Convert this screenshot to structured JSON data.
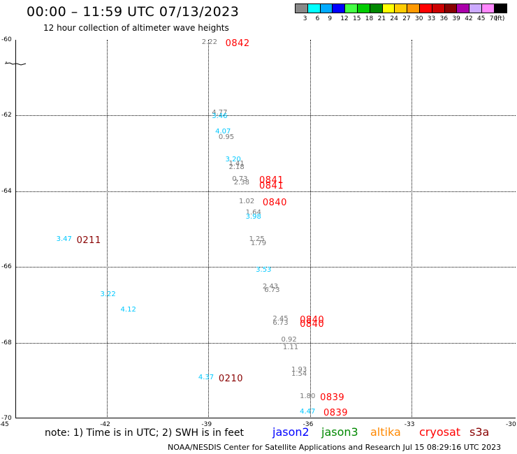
{
  "header": {
    "title": "00:00 – 11:59 UTC 07/13/2023",
    "subtitle": "12 hour collection of altimeter wave heights"
  },
  "colors": {
    "jason2": "#0000ff",
    "jason3": "#008800",
    "altika": "#ff8800",
    "cryosat": "#ff0000",
    "s3a": "#880000",
    "value_cyan": "#00c8ff",
    "value_gray": "#777777",
    "time_red": "#ff0000",
    "time_darkred": "#880000"
  },
  "legend": {
    "unit": "(ft)",
    "swatches": [
      {
        "color": "#888888",
        "label": "3"
      },
      {
        "color": "#00ffff",
        "label": "6"
      },
      {
        "color": "#00aaff",
        "label": "9"
      },
      {
        "color": "#0000ff",
        "label": "12"
      },
      {
        "color": "#44ff44",
        "label": "15"
      },
      {
        "color": "#00cc00",
        "label": "18"
      },
      {
        "color": "#008800",
        "label": "21"
      },
      {
        "color": "#ffff00",
        "label": "24"
      },
      {
        "color": "#ffcc00",
        "label": "27"
      },
      {
        "color": "#ff9900",
        "label": "30"
      },
      {
        "color": "#ff0000",
        "label": "33"
      },
      {
        "color": "#cc0000",
        "label": "36"
      },
      {
        "color": "#880000",
        "label": "39"
      },
      {
        "color": "#aa00aa",
        "label": "42"
      },
      {
        "color": "#ccaaff",
        "label": "45"
      },
      {
        "color": "#ff88ff",
        "label": "70"
      },
      {
        "color": "#000000",
        "label": ""
      }
    ]
  },
  "axes": {
    "y_ticks": [
      "-60",
      "-62",
      "-64",
      "-66",
      "-68",
      "-70"
    ],
    "x_ticks": [
      "-45",
      "-42",
      "-39",
      "-36",
      "-33",
      "-30"
    ]
  },
  "observations": [
    {
      "lon": -39.2,
      "lat": -60.1,
      "value": "2.22",
      "color": "value_gray"
    },
    {
      "lon": -38.5,
      "lat": -60.1,
      "time": "0842",
      "color": "time_red"
    },
    {
      "lon": -38.9,
      "lat": -61.95,
      "value": "4.77",
      "color": "value_gray"
    },
    {
      "lon": -38.9,
      "lat": -62.05,
      "value": "3.46",
      "color": "value_cyan"
    },
    {
      "lon": -38.8,
      "lat": -62.45,
      "value": "4.07",
      "color": "value_cyan"
    },
    {
      "lon": -38.7,
      "lat": -62.6,
      "value": "0.95",
      "color": "value_gray"
    },
    {
      "lon": -38.5,
      "lat": -63.2,
      "value": "3.20",
      "color": "value_cyan"
    },
    {
      "lon": -38.4,
      "lat": -63.3,
      "value": "1.41",
      "color": "value_gray"
    },
    {
      "lon": -38.4,
      "lat": -63.4,
      "value": "2.18",
      "color": "value_gray"
    },
    {
      "lon": -38.3,
      "lat": -63.7,
      "value": "0.73",
      "color": "value_gray"
    },
    {
      "lon": -38.25,
      "lat": -63.8,
      "value": "2.38",
      "color": "value_gray"
    },
    {
      "lon": -37.5,
      "lat": -63.7,
      "time": "0841",
      "color": "time_red"
    },
    {
      "lon": -37.5,
      "lat": -63.85,
      "time": "0841",
      "color": "time_red"
    },
    {
      "lon": -38.1,
      "lat": -64.3,
      "value": "1.02",
      "color": "value_gray"
    },
    {
      "lon": -37.4,
      "lat": -64.3,
      "time": "0840",
      "color": "time_red"
    },
    {
      "lon": -37.9,
      "lat": -64.6,
      "value": "1.64",
      "color": "value_gray"
    },
    {
      "lon": -37.9,
      "lat": -64.7,
      "value": "3.98",
      "color": "value_cyan"
    },
    {
      "lon": -43.5,
      "lat": -65.3,
      "value": "3.47",
      "color": "value_cyan"
    },
    {
      "lon": -42.9,
      "lat": -65.3,
      "time": "0211",
      "color": "time_darkred"
    },
    {
      "lon": -37.8,
      "lat": -65.3,
      "value": "1.25",
      "color": "value_gray"
    },
    {
      "lon": -37.75,
      "lat": -65.4,
      "value": "1.79",
      "color": "value_gray"
    },
    {
      "lon": -37.6,
      "lat": -66.1,
      "value": "3.53",
      "color": "value_cyan"
    },
    {
      "lon": -37.4,
      "lat": -66.55,
      "value": "2.43",
      "color": "value_gray"
    },
    {
      "lon": -37.35,
      "lat": -66.65,
      "value": "6.73",
      "color": "value_gray"
    },
    {
      "lon": -42.2,
      "lat": -66.75,
      "value": "3.22",
      "color": "value_cyan"
    },
    {
      "lon": -41.6,
      "lat": -67.15,
      "value": "4.12",
      "color": "value_cyan"
    },
    {
      "lon": -37.1,
      "lat": -67.4,
      "value": "2.45",
      "color": "value_gray"
    },
    {
      "lon": -37.1,
      "lat": -67.5,
      "value": "6.73",
      "color": "value_gray"
    },
    {
      "lon": -36.3,
      "lat": -67.4,
      "time": "0840",
      "color": "time_red"
    },
    {
      "lon": -36.3,
      "lat": -67.5,
      "time": "0840",
      "color": "time_red"
    },
    {
      "lon": -36.85,
      "lat": -67.95,
      "value": "0.92",
      "color": "value_gray"
    },
    {
      "lon": -36.8,
      "lat": -68.15,
      "value": "1.11",
      "color": "value_gray"
    },
    {
      "lon": -39.3,
      "lat": -68.95,
      "value": "4.37",
      "color": "value_cyan"
    },
    {
      "lon": -38.7,
      "lat": -68.95,
      "time": "0210",
      "color": "time_darkred"
    },
    {
      "lon": -36.55,
      "lat": -68.75,
      "value": "1.93",
      "color": "value_gray"
    },
    {
      "lon": -36.55,
      "lat": -68.85,
      "value": "1.54",
      "color": "value_gray"
    },
    {
      "lon": -36.3,
      "lat": -69.45,
      "value": "1.80",
      "color": "value_gray"
    },
    {
      "lon": -35.7,
      "lat": -69.45,
      "time": "0839",
      "color": "time_red"
    },
    {
      "lon": -36.3,
      "lat": -69.85,
      "value": "4.47",
      "color": "value_cyan"
    },
    {
      "lon": -35.6,
      "lat": -69.85,
      "time": "0839",
      "color": "time_red"
    }
  ],
  "footer": {
    "note": "note: 1) Time is in UTC; 2) SWH is in feet",
    "satellites": [
      {
        "name": "jason2",
        "color": "jason2"
      },
      {
        "name": "jason3",
        "color": "jason3"
      },
      {
        "name": "altika",
        "color": "altika"
      },
      {
        "name": "cryosat",
        "color": "cryosat"
      },
      {
        "name": "s3a",
        "color": "s3a"
      }
    ],
    "credit": "NOAA/NESDIS Center for Satellite Applications and Research    Jul 15 08:29:16 UTC 2023"
  }
}
